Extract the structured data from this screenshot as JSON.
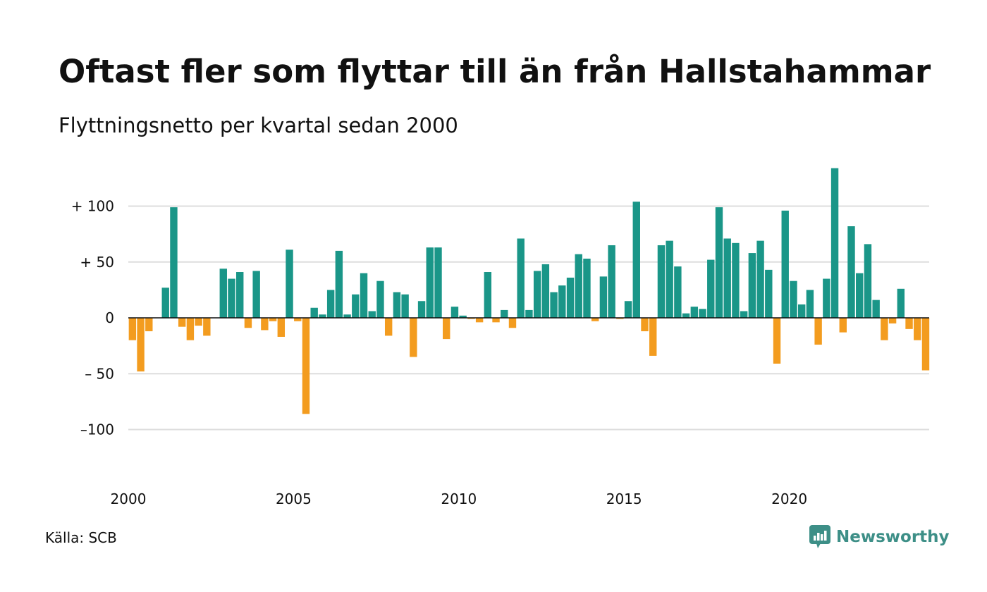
{
  "chart_data": {
    "type": "bar",
    "title": "Oftast fler som flyttar till än från Hallstahammar",
    "subtitle": "Flyttningsnetto per kvartal sedan 2000",
    "source": "Källa: SCB",
    "brand": "Newsworthy",
    "x_start": 2000,
    "x_step": 0.25,
    "xlim": [
      2000,
      2024.75
    ],
    "ylim": [
      -100,
      130
    ],
    "x_ticks": [
      {
        "value": 2000,
        "label": "2000"
      },
      {
        "value": 2005,
        "label": "2005"
      },
      {
        "value": 2010,
        "label": "2010"
      },
      {
        "value": 2015,
        "label": "2015"
      },
      {
        "value": 2020,
        "label": "2020"
      }
    ],
    "y_ticks": [
      {
        "value": 100,
        "label": "+ 100"
      },
      {
        "value": 50,
        "label": "+  50"
      },
      {
        "value": 0,
        "label": "0"
      },
      {
        "value": -50,
        "label": "– 50"
      },
      {
        "value": -100,
        "label": "–100"
      }
    ],
    "grid": true,
    "colors": {
      "positive": "#1a9688",
      "negative": "#f39c1f",
      "grid": "#dddddd",
      "axis": "#111111"
    },
    "values": [
      -20,
      -48,
      -12,
      0,
      27,
      99,
      -8,
      -20,
      -7,
      -16,
      0,
      44,
      35,
      41,
      -9,
      42,
      -11,
      -3,
      -17,
      61,
      -3,
      -86,
      9,
      3,
      25,
      60,
      3,
      21,
      40,
      6,
      33,
      -16,
      23,
      21,
      -35,
      15,
      63,
      63,
      -19,
      10,
      2,
      -1,
      -4,
      41,
      -4,
      7,
      -9,
      71,
      7,
      42,
      48,
      23,
      29,
      36,
      57,
      53,
      -3,
      37,
      65,
      -1,
      15,
      104,
      -12,
      -34,
      65,
      69,
      46,
      4,
      10,
      8,
      52,
      99,
      71,
      67,
      6,
      58,
      69,
      43,
      -41,
      96,
      33,
      12,
      25,
      -24,
      35,
      134,
      -13,
      82,
      40,
      66,
      16,
      -20,
      -5,
      26,
      -10,
      -20,
      -47
    ]
  }
}
